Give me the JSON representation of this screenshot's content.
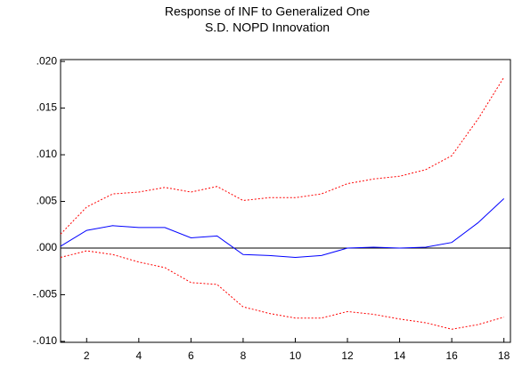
{
  "chart_data": {
    "type": "line",
    "title": [
      "Response of INF to Generalized One",
      "S.D. NOPD Innovation"
    ],
    "x": [
      1,
      2,
      3,
      4,
      5,
      6,
      7,
      8,
      9,
      10,
      11,
      12,
      13,
      14,
      15,
      16,
      17,
      18
    ],
    "series": [
      {
        "color": "#0000ff",
        "dashed": false,
        "values": [
          0.0002,
          0.0019,
          0.0024,
          0.0022,
          0.0022,
          0.0011,
          0.0013,
          -0.0007,
          -0.0008,
          -0.001,
          -0.0008,
          0.0,
          0.0001,
          0.0,
          0.0001,
          0.0006,
          0.0027,
          0.0053
        ]
      },
      {
        "color": "#ff0000",
        "dashed": true,
        "values": [
          0.0015,
          0.0044,
          0.0058,
          0.006,
          0.0065,
          0.006,
          0.0066,
          0.0051,
          0.0054,
          0.0054,
          0.0058,
          0.0069,
          0.0074,
          0.0077,
          0.0084,
          0.0099,
          0.0138,
          0.0183
        ]
      },
      {
        "color": "#ff0000",
        "dashed": true,
        "values": [
          -0.001,
          -0.0003,
          -0.0007,
          -0.0015,
          -0.0021,
          -0.0037,
          -0.0039,
          -0.0063,
          -0.007,
          -0.0075,
          -0.0075,
          -0.0068,
          -0.0071,
          -0.0076,
          -0.008,
          -0.0087,
          -0.0082,
          -0.0074
        ]
      }
    ],
    "xlim": [
      1,
      18.25
    ],
    "xticks": [
      2,
      4,
      6,
      8,
      10,
      12,
      14,
      16,
      18
    ],
    "ylim": [
      -0.0101,
      0.0202
    ],
    "yticks": [
      {
        "value": 0.02,
        "label": ".020"
      },
      {
        "value": 0.015,
        "label": ".015"
      },
      {
        "value": 0.01,
        "label": ".010"
      },
      {
        "value": 0.005,
        "label": ".005"
      },
      {
        "value": 0,
        "label": ".000"
      },
      {
        "value": -0.005,
        "label": "-.005"
      },
      {
        "value": -0.01,
        "label": "-.010"
      }
    ],
    "zero_line": true,
    "grid": false
  }
}
